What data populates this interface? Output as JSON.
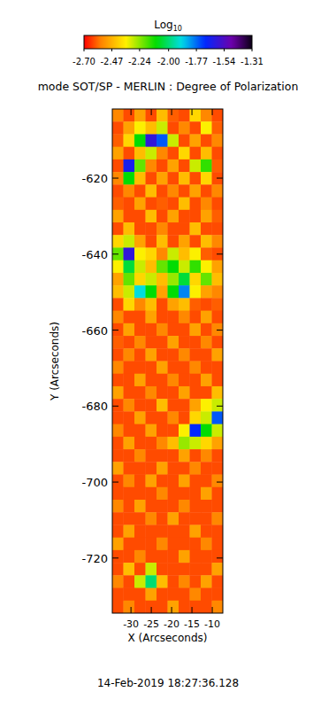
{
  "chart_data": {
    "type": "heatmap",
    "title": "mode SOT/SP - MERLIN : Degree of Polarization",
    "xlabel": "X (Arcseconds)",
    "ylabel": "Y (Arcseconds)",
    "annotation": "14-Feb-2019 18:27:36.128",
    "xlim": [
      -34.6,
      -7.4
    ],
    "ylim": [
      -734.5,
      -601.8
    ],
    "xticks": [
      -30,
      -25,
      -20,
      -15,
      -10
    ],
    "yticks": [
      -720,
      -700,
      -680,
      -660,
      -640,
      -620
    ],
    "colorbar": {
      "label": "Log10",
      "range": [
        -2.7,
        -1.31
      ],
      "ticks": [
        {
          "value": -2.7,
          "label": "-2.70"
        },
        -2.47,
        -2.24,
        {
          "value": -2,
          "label": "-2.00"
        },
        -1.77,
        -1.54,
        -1.31
      ]
    },
    "cells": [
      [
        -2.55,
        -2.62,
        -2.5,
        -2.62,
        -2.45,
        -2.6,
        -2.62,
        -2.4,
        -2.55,
        -2.62
      ],
      [
        -2.62,
        -2.5,
        -2.35,
        -2.45,
        -2.3,
        -2.62,
        -2.55,
        -2.62,
        -2.35,
        -2.6
      ],
      [
        -2.6,
        -2.4,
        -2.1,
        -1.6,
        -1.75,
        -2.3,
        -2.62,
        -2.5,
        -2.62,
        -2.55
      ],
      [
        -2.5,
        -2.62,
        -2.45,
        -2.3,
        -2.55,
        -2.62,
        -2.4,
        -2.62,
        -2.45,
        -2.62
      ],
      [
        -2.62,
        -1.65,
        -2.2,
        -2.55,
        -2.62,
        -2.5,
        -2.62,
        -2.3,
        -2.15,
        -2.6
      ],
      [
        -2.55,
        -2.1,
        -2.45,
        -2.62,
        -2.5,
        -2.62,
        -2.45,
        -2.62,
        -2.4,
        -2.62
      ],
      [
        -2.62,
        -2.55,
        -2.62,
        -2.45,
        -2.62,
        -2.55,
        -2.62,
        -2.5,
        -2.62,
        -2.55
      ],
      [
        -2.6,
        -2.62,
        -2.5,
        -2.62,
        -2.6,
        -2.62,
        -2.45,
        -2.62,
        -2.55,
        -2.62
      ],
      [
        -2.5,
        -2.62,
        -2.62,
        -2.45,
        -2.62,
        -2.5,
        -2.62,
        -2.62,
        -2.5,
        -2.6
      ],
      [
        -2.62,
        -2.45,
        -2.62,
        -2.62,
        -2.55,
        -2.62,
        -2.62,
        -2.45,
        -2.62,
        -2.62
      ],
      [
        -2.4,
        -2.3,
        -2.5,
        -2.62,
        -2.45,
        -2.62,
        -2.5,
        -2.62,
        -2.45,
        -2.55
      ],
      [
        -2.2,
        -1.6,
        -2.35,
        -2.4,
        -2.55,
        -2.3,
        -2.45,
        -2.35,
        -2.6,
        -2.62
      ],
      [
        -2.35,
        -2.05,
        -2.3,
        -2.45,
        -2.2,
        -2.1,
        -2.3,
        -2.15,
        -2.35,
        -2.5
      ],
      [
        -2.5,
        -2.2,
        -2.4,
        -2.3,
        -2.45,
        -2.25,
        -2.05,
        -2.4,
        -2.2,
        -2.45
      ],
      [
        -2.45,
        -2.3,
        -1.9,
        -2.1,
        -2.5,
        -2.1,
        -1.8,
        -2.35,
        -2.5,
        -2.55
      ],
      [
        -2.62,
        -2.4,
        -2.55,
        -2.45,
        -2.62,
        -2.5,
        -2.45,
        -2.6,
        -2.62,
        -2.6
      ],
      [
        -2.55,
        -2.62,
        -2.62,
        -2.5,
        -2.62,
        -2.62,
        -2.55,
        -2.62,
        -2.5,
        -2.62
      ],
      [
        -2.62,
        -2.5,
        -2.62,
        -2.62,
        -2.55,
        -2.62,
        -2.62,
        -2.5,
        -2.62,
        -2.55
      ],
      [
        -2.6,
        -2.62,
        -2.55,
        -2.62,
        -2.62,
        -2.5,
        -2.62,
        -2.62,
        -2.55,
        -2.62
      ],
      [
        -2.62,
        -2.55,
        -2.62,
        -2.5,
        -2.62,
        -2.62,
        -2.55,
        -2.62,
        -2.62,
        -2.5
      ],
      [
        -2.55,
        -2.62,
        -2.62,
        -2.62,
        -2.5,
        -2.62,
        -2.62,
        -2.55,
        -2.62,
        -2.62
      ],
      [
        -2.62,
        -2.62,
        -2.5,
        -2.62,
        -2.62,
        -2.55,
        -2.62,
        -2.62,
        -2.5,
        -2.62
      ],
      [
        -2.5,
        -2.62,
        -2.62,
        -2.55,
        -2.62,
        -2.62,
        -2.5,
        -2.62,
        -2.62,
        -2.45
      ],
      [
        -2.62,
        -2.55,
        -2.62,
        -2.62,
        -2.45,
        -2.62,
        -2.62,
        -2.5,
        -2.35,
        -2.3
      ],
      [
        -2.62,
        -2.62,
        -2.5,
        -2.62,
        -2.62,
        -2.55,
        -2.62,
        -2.4,
        -2.3,
        -1.75
      ],
      [
        -2.55,
        -2.62,
        -2.62,
        -2.5,
        -2.62,
        -2.62,
        -2.35,
        -1.7,
        -2.1,
        -2.3
      ],
      [
        -2.62,
        -2.5,
        -2.62,
        -2.62,
        -2.55,
        -2.45,
        -2.25,
        -2.3,
        -2.4,
        -2.5
      ],
      [
        -2.62,
        -2.62,
        -2.55,
        -2.62,
        -2.62,
        -2.62,
        -2.5,
        -2.62,
        -2.55,
        -2.62
      ],
      [
        -2.5,
        -2.62,
        -2.62,
        -2.62,
        -2.5,
        -2.62,
        -2.62,
        -2.55,
        -2.62,
        -2.62
      ],
      [
        -2.62,
        -2.55,
        -2.62,
        -2.5,
        -2.62,
        -2.62,
        -2.5,
        -2.62,
        -2.62,
        -2.55
      ],
      [
        -2.62,
        -2.62,
        -2.62,
        -2.62,
        -2.55,
        -2.62,
        -2.62,
        -2.62,
        -2.5,
        -2.62
      ],
      [
        -2.55,
        -2.62,
        -2.5,
        -2.62,
        -2.62,
        -2.62,
        -2.55,
        -2.62,
        -2.62,
        -2.62
      ],
      [
        -2.62,
        -2.62,
        -2.62,
        -2.55,
        -2.62,
        -2.5,
        -2.62,
        -2.62,
        -2.62,
        -2.55
      ],
      [
        -2.62,
        -2.5,
        -2.62,
        -2.62,
        -2.62,
        -2.62,
        -2.62,
        -2.5,
        -2.62,
        -2.62
      ],
      [
        -2.5,
        -2.62,
        -2.62,
        -2.62,
        -2.55,
        -2.62,
        -2.62,
        -2.62,
        -2.55,
        -2.62
      ],
      [
        -2.62,
        -2.62,
        -2.55,
        -2.62,
        -2.62,
        -2.62,
        -2.5,
        -2.62,
        -2.62,
        -2.62
      ],
      [
        -2.62,
        -2.45,
        -2.62,
        -2.3,
        -2.62,
        -2.62,
        -2.62,
        -2.62,
        -2.62,
        -2.5
      ],
      [
        -2.55,
        -2.62,
        -2.3,
        -2.0,
        -2.45,
        -2.62,
        -2.55,
        -2.62,
        -2.5,
        -2.62
      ],
      [
        -2.62,
        -2.62,
        -2.62,
        -2.5,
        -2.62,
        -2.62,
        -2.62,
        -2.55,
        -2.62,
        -2.62
      ],
      [
        -2.62,
        -2.55,
        -2.62,
        -2.62,
        -2.62,
        -2.5,
        -2.62,
        -2.62,
        -2.62,
        -2.55
      ]
    ]
  }
}
